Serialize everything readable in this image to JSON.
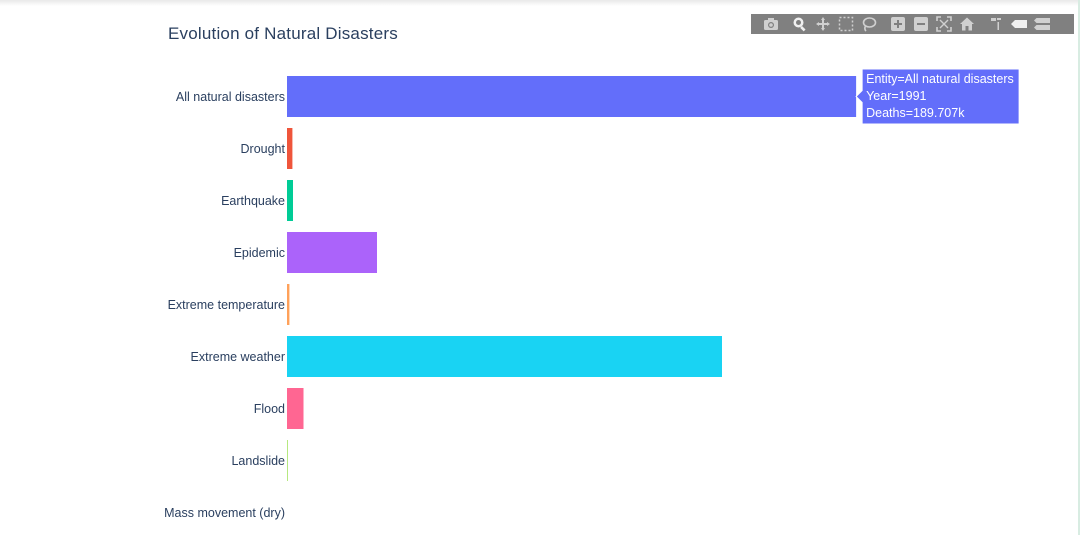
{
  "chart_data": {
    "type": "bar",
    "orientation": "horizontal",
    "title": "Evolution of Natural Disasters",
    "categories": [
      "All natural disasters",
      "Drought",
      "Earthquake",
      "Epidemic",
      "Extreme temperature",
      "Extreme weather",
      "Flood",
      "Landslide",
      "Mass movement (dry)"
    ],
    "values": [
      189707,
      1800,
      2000,
      30000,
      800,
      145000,
      5500,
      300,
      0
    ],
    "colors": [
      "#636efa",
      "#ef553b",
      "#00cc96",
      "#ab63fa",
      "#ffa15a",
      "#19d3f3",
      "#ff6692",
      "#b6e880",
      "#ff97ff"
    ],
    "xlim": [
      0,
      260000
    ],
    "grid": false,
    "legend": "none",
    "tooltip": {
      "category": "All natural disasters",
      "lines": [
        "Entity=All natural disasters",
        "Year=1991",
        "Deaths=189.707k"
      ]
    }
  },
  "modebar": {
    "icons": [
      "camera-icon",
      "zoom-icon",
      "pan-icon",
      "box-select-icon",
      "lasso-select-icon",
      "zoom-in-icon",
      "zoom-out-icon",
      "autoscale-icon",
      "reset-axes-icon",
      "spike-lines-icon",
      "hover-closest-icon",
      "hover-compare-icon"
    ]
  }
}
